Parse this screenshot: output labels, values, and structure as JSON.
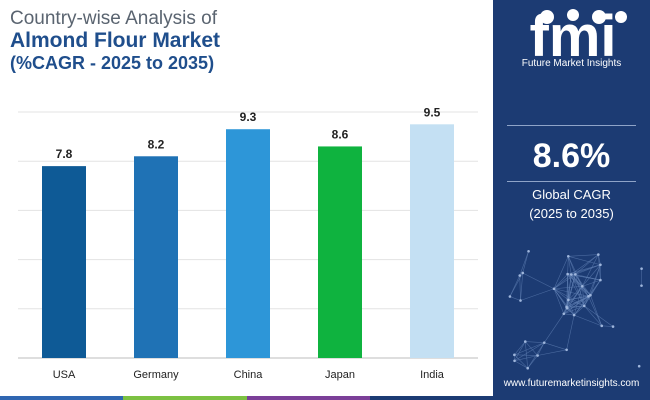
{
  "title": {
    "line1": "Country-wise Analysis of",
    "line2": "Almond Flour Market",
    "line3": "(%CAGR - 2025 to 2035)"
  },
  "chart_data": {
    "type": "bar",
    "categories": [
      "USA",
      "Germany",
      "China",
      "Japan",
      "India"
    ],
    "values": [
      7.8,
      8.2,
      9.3,
      8.6,
      9.5
    ],
    "data_labels": [
      "7.8",
      "8.2",
      "9.3",
      "8.6",
      "9.5"
    ],
    "colors": [
      "#0e5a96",
      "#1f72b5",
      "#2d96d8",
      "#0fb33f",
      "#c4e0f3"
    ],
    "ylim": [
      0,
      10
    ],
    "grid": true,
    "gridline_count": 6,
    "xlabel": "",
    "ylabel": ""
  },
  "panel": {
    "logo_text": "fmi",
    "brand": "Future Market Insights",
    "cagr_value": "8.6%",
    "cagr_label": "Global CAGR",
    "cagr_period": "(2025 to 2035)",
    "website": "www.futuremarketinsights.com",
    "background": "#1c3b73"
  },
  "footer_colors": [
    "#2f66b1",
    "#7cc142",
    "#7b3f98",
    "#1c3b73"
  ]
}
